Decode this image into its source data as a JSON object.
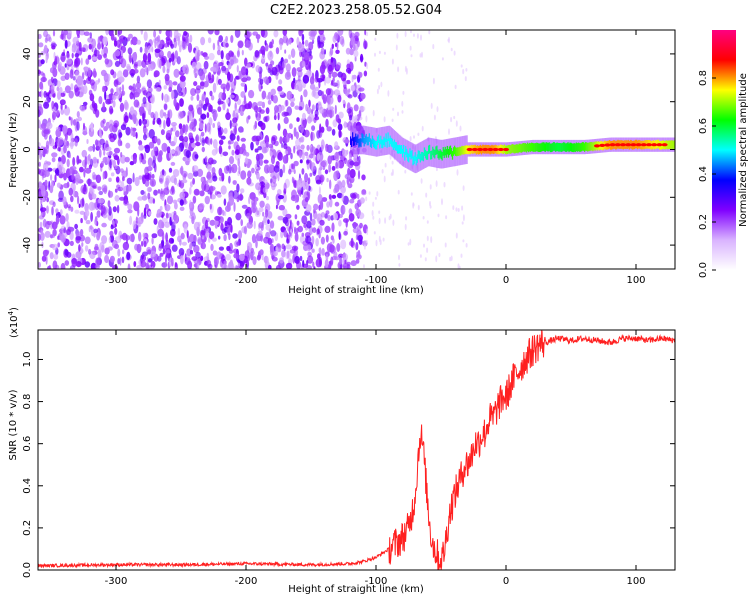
{
  "title": "C2E2.2023.258.05.52.G04",
  "chart_data": [
    {
      "type": "heatmap",
      "xlabel": "Height of straight line (km)",
      "ylabel": "Frequency (Hz)",
      "xlim": [
        -360,
        130
      ],
      "ylim": [
        -50,
        50
      ],
      "x_ticks": [
        -300,
        -200,
        -100,
        0,
        100
      ],
      "y_ticks": [
        -40,
        -20,
        0,
        20,
        40
      ],
      "grid": false,
      "colorbar": {
        "label": "Normalized spectral amplitude",
        "range": [
          0.0,
          1.0
        ],
        "ticks": [
          "0.0",
          "0.2",
          "0.4",
          "0.6",
          "0.8"
        ],
        "colors": [
          "#ffffff",
          "#d9b3ff",
          "#8000ff",
          "#0000ff",
          "#00ffff",
          "#00ff00",
          "#ffff00",
          "#ff0000",
          "#ff0080"
        ]
      },
      "ridge": [
        {
          "x": -120,
          "freq": 4,
          "amp": 0.35
        },
        {
          "x": -110,
          "freq": 4,
          "amp": 0.45
        },
        {
          "x": -100,
          "freq": 3,
          "amp": 0.5
        },
        {
          "x": -90,
          "freq": 4,
          "amp": 0.5
        },
        {
          "x": -80,
          "freq": -1,
          "amp": 0.5
        },
        {
          "x": -70,
          "freq": -4,
          "amp": 0.5
        },
        {
          "x": -60,
          "freq": -1,
          "amp": 0.55
        },
        {
          "x": -50,
          "freq": -2,
          "amp": 0.6
        },
        {
          "x": -40,
          "freq": -1,
          "amp": 0.65
        },
        {
          "x": -30,
          "freq": 0,
          "amp": 0.75
        },
        {
          "x": -20,
          "freq": 0,
          "amp": 0.8
        },
        {
          "x": -10,
          "freq": 0,
          "amp": 0.8
        },
        {
          "x": 0,
          "freq": 0,
          "amp": 0.7
        },
        {
          "x": 20,
          "freq": 1,
          "amp": 0.65
        },
        {
          "x": 40,
          "freq": 1,
          "amp": 0.6
        },
        {
          "x": 60,
          "freq": 1,
          "amp": 0.65
        },
        {
          "x": 80,
          "freq": 2,
          "amp": 0.8
        },
        {
          "x": 100,
          "freq": 2,
          "amp": 0.8
        },
        {
          "x": 130,
          "freq": 2,
          "amp": 0.7
        }
      ]
    },
    {
      "type": "line",
      "xlabel": "Height of straight line (km)",
      "ylabel": "SNR (10 * v/v)",
      "y_multiplier": "(x10",
      "y_multiplier_exp": "4",
      "y_multiplier_close": ")",
      "xlim": [
        -360,
        130
      ],
      "ylim": [
        0,
        1.14
      ],
      "x_ticks": [
        -300,
        -200,
        -100,
        0,
        100
      ],
      "y_ticks": [
        "0.0",
        "0.2",
        "0.4",
        "0.6",
        "0.8",
        "1.0"
      ],
      "grid": false,
      "series": [
        {
          "color": "#ff2020",
          "x": [
            -360,
            -300,
            -250,
            -200,
            -150,
            -120,
            -110,
            -100,
            -90,
            -80,
            -75,
            -72,
            -70,
            -68,
            -66,
            -64,
            -62,
            -60,
            -58,
            -56,
            -55,
            -52,
            -50,
            -48,
            -46,
            -44,
            -42,
            -40,
            -38,
            -36,
            -34,
            -32,
            -30,
            -28,
            -26,
            -24,
            -22,
            -20,
            -18,
            -16,
            -14,
            -12,
            -10,
            -8,
            -6,
            -4,
            -2,
            0,
            5,
            10,
            15,
            20,
            25,
            30,
            40,
            50,
            60,
            70,
            80,
            90,
            100,
            110,
            120,
            130
          ],
          "values": [
            0.02,
            0.025,
            0.025,
            0.03,
            0.025,
            0.03,
            0.04,
            0.06,
            0.1,
            0.15,
            0.2,
            0.28,
            0.35,
            0.5,
            0.65,
            0.6,
            0.45,
            0.3,
            0.18,
            0.12,
            0.1,
            0.06,
            0.04,
            0.08,
            0.15,
            0.25,
            0.3,
            0.35,
            0.38,
            0.42,
            0.45,
            0.5,
            0.5,
            0.52,
            0.55,
            0.6,
            0.6,
            0.62,
            0.65,
            0.65,
            0.7,
            0.72,
            0.72,
            0.75,
            0.78,
            0.8,
            0.82,
            0.82,
            0.9,
            0.95,
            1.0,
            1.04,
            1.07,
            1.08,
            1.1,
            1.09,
            1.1,
            1.09,
            1.08,
            1.1,
            1.1,
            1.09,
            1.1,
            1.09
          ]
        }
      ]
    }
  ]
}
